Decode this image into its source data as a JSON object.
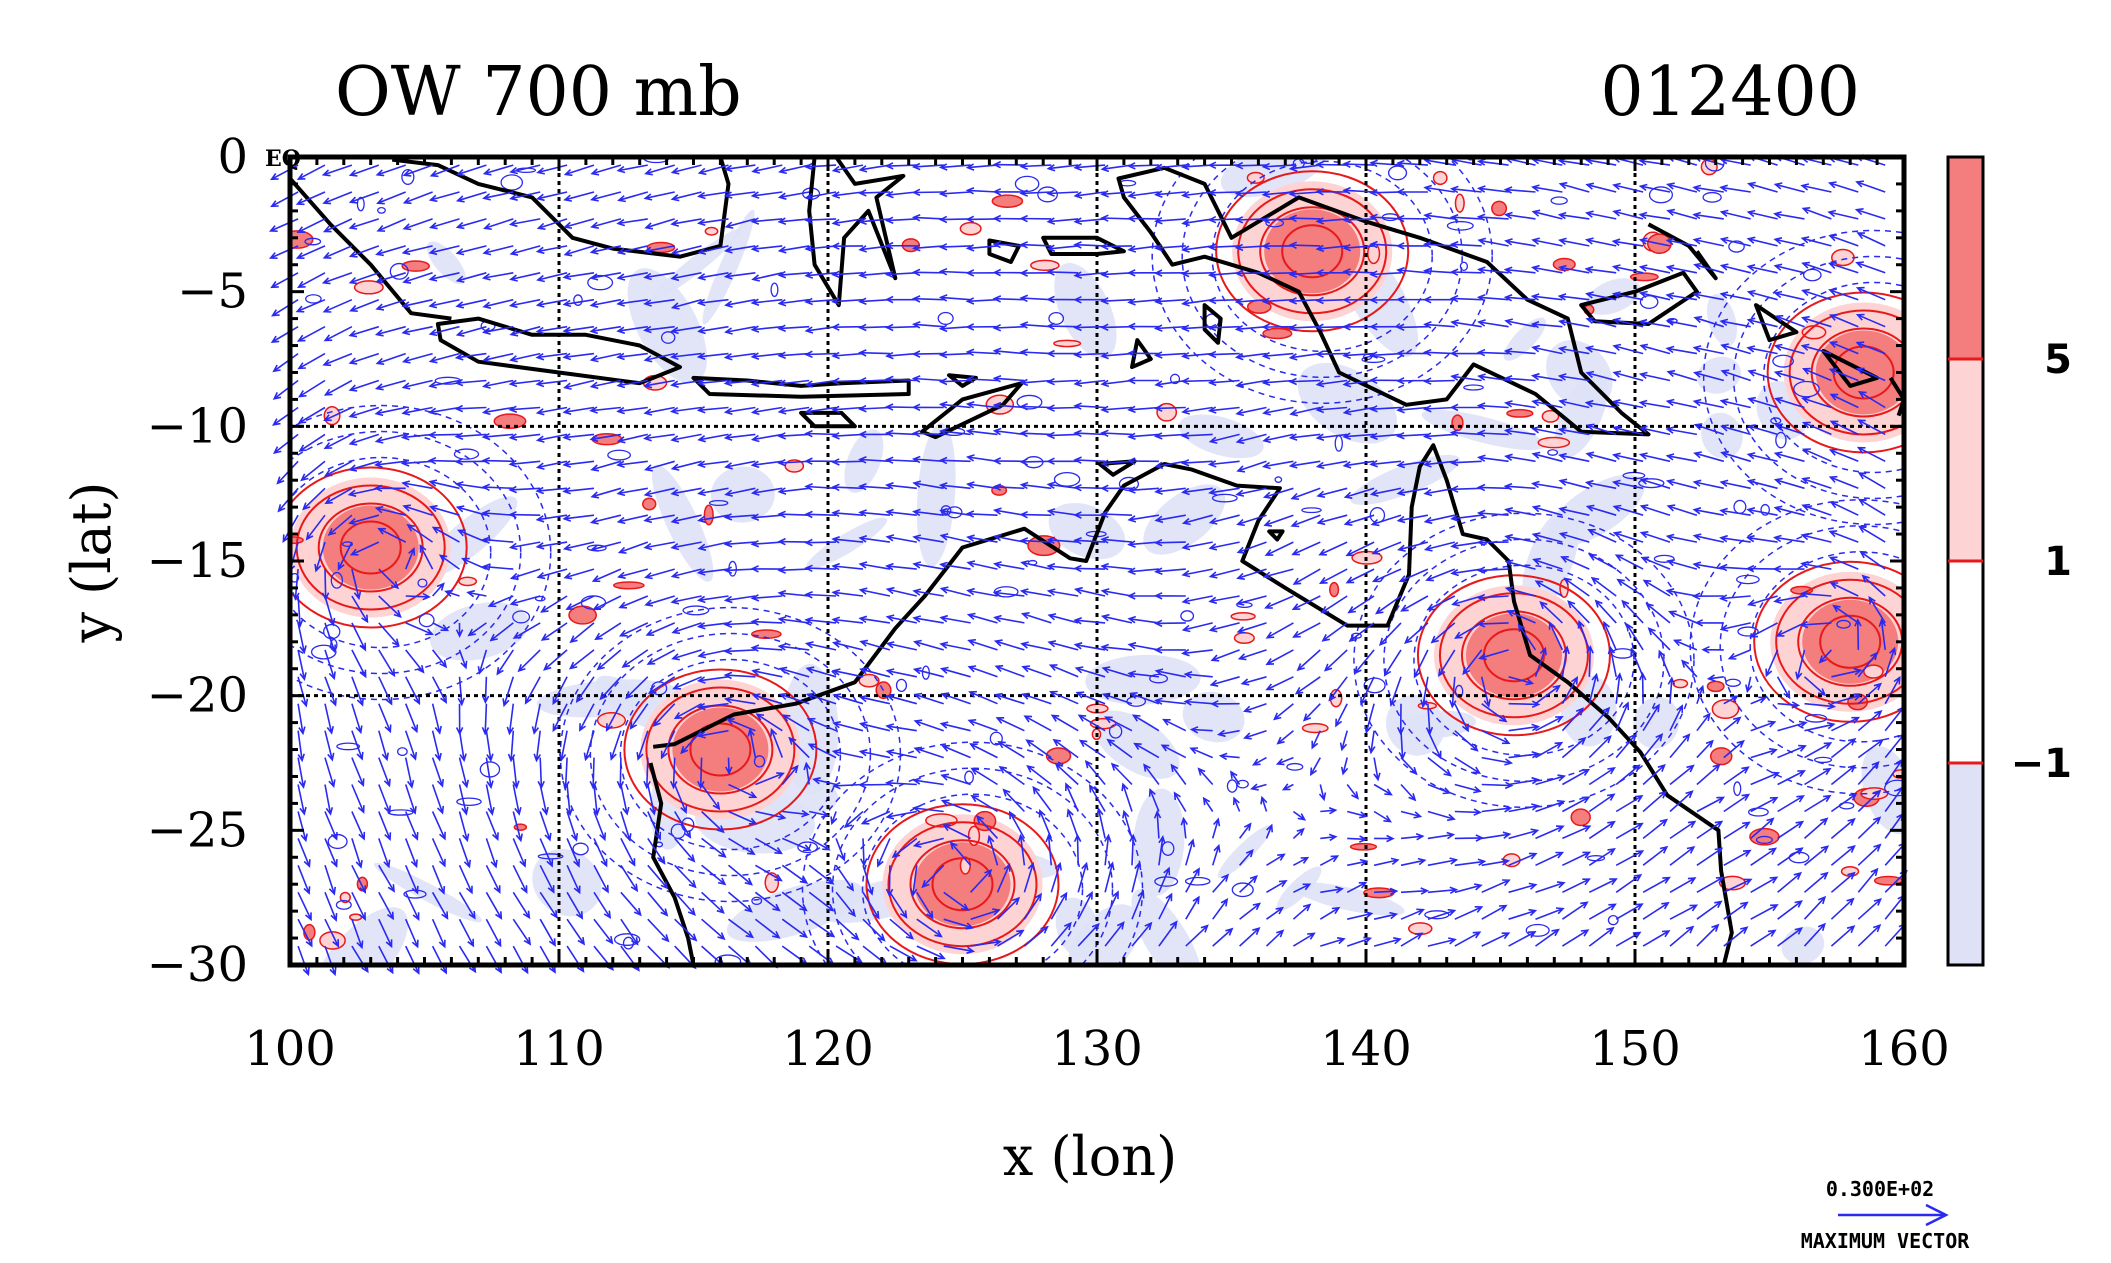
{
  "chart_data": {
    "type": "contour",
    "title_left": "OW 700 mb",
    "title_right": "012400",
    "xlabel": "x (lon)",
    "ylabel": "y (lat)",
    "xlim": [
      100,
      160
    ],
    "ylim": [
      -30,
      0
    ],
    "x_ticks": [
      100,
      110,
      120,
      130,
      140,
      150,
      160
    ],
    "y_ticks": [
      0,
      -5,
      -10,
      -15,
      -20,
      -25,
      -30
    ],
    "y_tick_labels": [
      "0",
      "−5",
      "−10",
      "−15",
      "−20",
      "−25",
      "−30"
    ],
    "equator_label": "EQ",
    "grid": true,
    "colorbar": {
      "levels": [
        5,
        1,
        -1
      ],
      "level_labels": [
        "5",
        "1",
        "−1"
      ],
      "colors": [
        "#f47d7d",
        "#fdd3d3",
        "#ffffff",
        "#dfe2f7"
      ]
    },
    "vector_legend": {
      "magnitude": "0.300E+02",
      "label": "MAXIMUM VECTOR",
      "color": "#2a2af0"
    },
    "features": [
      {
        "type": "positive_ow",
        "lon": 145.5,
        "lat": -18.5
      },
      {
        "type": "positive_ow",
        "lon": 116,
        "lat": -22
      },
      {
        "type": "positive_ow",
        "lon": 125,
        "lat": -27
      },
      {
        "type": "positive_ow",
        "lon": 103,
        "lat": -14.5
      },
      {
        "type": "positive_ow",
        "lon": 138,
        "lat": -3.5
      },
      {
        "type": "positive_ow",
        "lon": 158.5,
        "lat": -8
      },
      {
        "type": "positive_ow",
        "lon": 158,
        "lat": -18
      }
    ]
  },
  "colors": {
    "vector": "#2a2af0",
    "contour_positive": "#e8191a",
    "coast": "#000000"
  }
}
